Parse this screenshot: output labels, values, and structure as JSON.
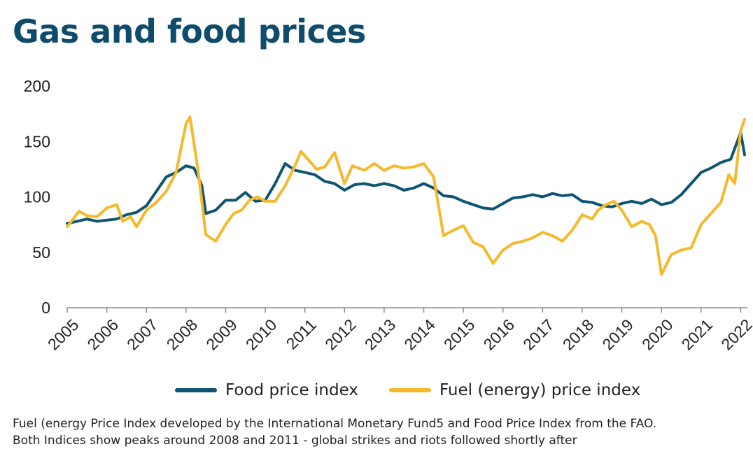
{
  "chart_data": {
    "type": "line",
    "title": "Gas and food prices",
    "xlabel": "",
    "ylabel": "",
    "xlim": [
      2005.0,
      2022.17
    ],
    "ylim": [
      0,
      200
    ],
    "y_ticks": [
      0,
      50,
      100,
      150,
      200
    ],
    "x_tick_labels": [
      "2005",
      "2006",
      "2007",
      "2008",
      "2009",
      "2010",
      "2011",
      "2012",
      "2013",
      "2014",
      "2015",
      "2016",
      "2017",
      "2018",
      "2019",
      "2020",
      "2021",
      "2022"
    ],
    "grid": false,
    "legend_position": "bottom",
    "series": [
      {
        "name": "Food price index",
        "color": "#0f5470",
        "x": [
          2005.0,
          2005.25,
          2005.5,
          2005.75,
          2006.0,
          2006.25,
          2006.5,
          2006.75,
          2007.0,
          2007.25,
          2007.5,
          2007.75,
          2008.0,
          2008.2,
          2008.4,
          2008.5,
          2008.75,
          2009.0,
          2009.25,
          2009.5,
          2009.75,
          2010.0,
          2010.25,
          2010.5,
          2010.75,
          2011.0,
          2011.25,
          2011.5,
          2011.75,
          2012.0,
          2012.25,
          2012.5,
          2012.75,
          2013.0,
          2013.25,
          2013.5,
          2013.75,
          2014.0,
          2014.25,
          2014.5,
          2014.75,
          2015.0,
          2015.25,
          2015.5,
          2015.75,
          2016.0,
          2016.25,
          2016.5,
          2016.75,
          2017.0,
          2017.25,
          2017.5,
          2017.75,
          2018.0,
          2018.25,
          2018.5,
          2018.75,
          2019.0,
          2019.25,
          2019.5,
          2019.75,
          2020.0,
          2020.25,
          2020.5,
          2020.75,
          2021.0,
          2021.25,
          2021.5,
          2021.75,
          2022.0,
          2022.1
        ],
        "values": [
          76,
          78,
          80,
          78,
          79,
          80,
          84,
          86,
          92,
          105,
          118,
          122,
          128,
          126,
          110,
          85,
          88,
          97,
          97,
          104,
          96,
          97,
          112,
          130,
          124,
          122,
          120,
          114,
          112,
          106,
          111,
          112,
          110,
          112,
          110,
          106,
          108,
          112,
          108,
          101,
          100,
          96,
          93,
          90,
          89,
          94,
          99,
          100,
          102,
          100,
          103,
          101,
          102,
          96,
          95,
          92,
          91,
          94,
          96,
          94,
          98,
          93,
          95,
          102,
          112,
          122,
          126,
          131,
          134,
          158,
          138
        ]
      },
      {
        "name": "Fuel (energy) price index",
        "color": "#f6b92b",
        "x": [
          2005.0,
          2005.15,
          2005.3,
          2005.5,
          2005.75,
          2006.0,
          2006.25,
          2006.4,
          2006.6,
          2006.75,
          2007.0,
          2007.25,
          2007.5,
          2007.75,
          2008.0,
          2008.1,
          2008.3,
          2008.5,
          2008.75,
          2009.0,
          2009.2,
          2009.4,
          2009.6,
          2009.8,
          2010.0,
          2010.25,
          2010.5,
          2010.75,
          2010.9,
          2011.1,
          2011.3,
          2011.5,
          2011.75,
          2012.0,
          2012.2,
          2012.5,
          2012.75,
          2013.0,
          2013.25,
          2013.5,
          2013.75,
          2014.0,
          2014.25,
          2014.5,
          2014.75,
          2015.0,
          2015.25,
          2015.5,
          2015.75,
          2016.0,
          2016.25,
          2016.5,
          2016.75,
          2017.0,
          2017.25,
          2017.5,
          2017.75,
          2018.0,
          2018.25,
          2018.4,
          2018.6,
          2018.8,
          2019.0,
          2019.25,
          2019.5,
          2019.7,
          2019.85,
          2020.0,
          2020.25,
          2020.5,
          2020.75,
          2021.0,
          2021.25,
          2021.5,
          2021.7,
          2021.85,
          2022.0,
          2022.1
        ],
        "values": [
          73,
          80,
          87,
          83,
          82,
          90,
          93,
          78,
          82,
          73,
          88,
          95,
          105,
          122,
          166,
          172,
          125,
          66,
          60,
          75,
          85,
          88,
          97,
          100,
          96,
          96,
          110,
          128,
          141,
          133,
          125,
          127,
          140,
          112,
          128,
          124,
          130,
          124,
          128,
          126,
          127,
          130,
          118,
          65,
          70,
          74,
          59,
          55,
          40,
          52,
          58,
          60,
          63,
          68,
          65,
          60,
          70,
          84,
          80,
          88,
          93,
          96,
          88,
          73,
          78,
          75,
          65,
          30,
          48,
          52,
          54,
          75,
          85,
          95,
          120,
          112,
          160,
          170
        ]
      }
    ]
  },
  "legend": {
    "food_label": "Food price index",
    "fuel_label": "Fuel (energy) price index"
  },
  "caption": {
    "line1": "Fuel (energy Price Index developed by the International Monetary Fund5 and Food Price Index from the FAO.",
    "line2": "Both Indices show peaks around 2008 and 2011 - global strikes and riots followed shortly after"
  }
}
